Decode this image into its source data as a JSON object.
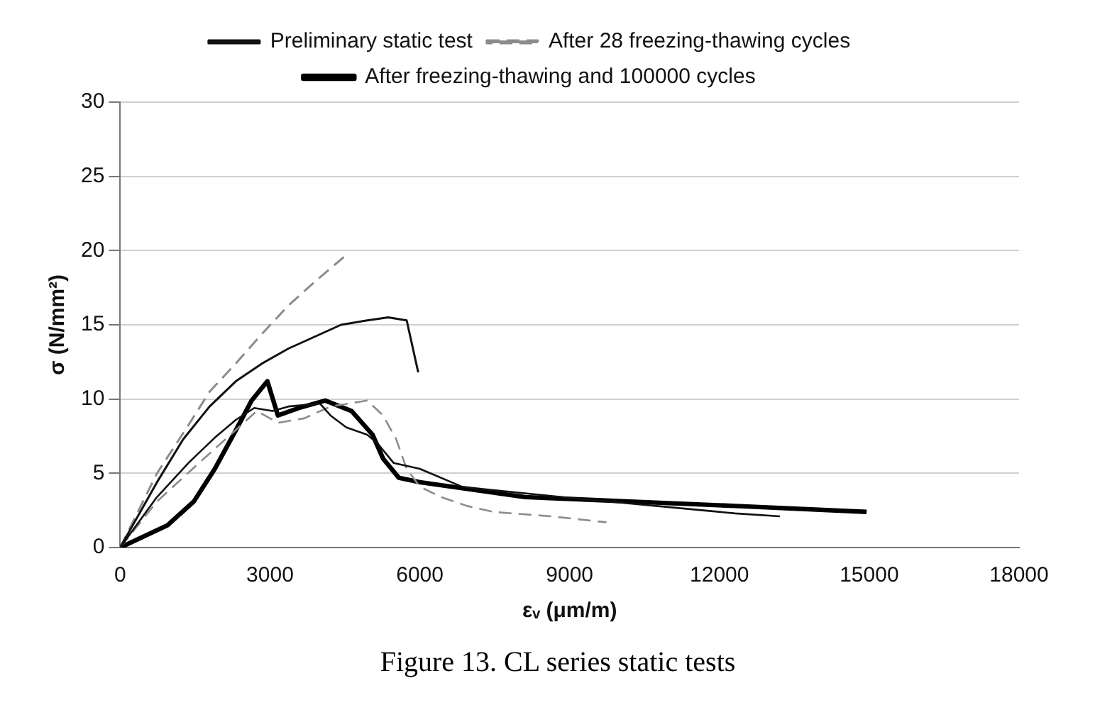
{
  "chart_data": {
    "type": "line",
    "xlabel": "εᵥ (μm/m)",
    "ylabel": "σ (N/mm²)",
    "xlim": [
      0,
      18000
    ],
    "xticks": [
      0,
      3000,
      6000,
      9000,
      12000,
      15000,
      18000
    ],
    "ylim": [
      0,
      30
    ],
    "yticks": [
      0,
      5,
      10,
      15,
      20,
      25,
      30
    ],
    "grid": "y",
    "legend": "top",
    "marker": "none",
    "annotations": [
      "Figure 13. CL series static tests"
    ],
    "series": [
      {
        "name": "Preliminary static test",
        "color": "#111111",
        "line_style": "solid",
        "x": [
          0,
          737,
          1263,
          1790,
          2316,
          2842,
          3368,
          3895,
          4421,
          4947,
          5368,
          5737,
          5968
        ],
        "values": [
          0,
          4.4,
          7.3,
          9.5,
          11.2,
          12.4,
          13.4,
          14.2,
          15.0,
          15.3,
          15.5,
          15.3,
          11.8
        ]
      },
      {
        "color": "#111111",
        "line_style": "solid",
        "x": [
          0,
          737,
          1368,
          1895,
          2316,
          2684,
          3053,
          3368,
          4000,
          4210,
          4526,
          4947,
          5158,
          5474,
          6000,
          6842,
          7368,
          9158,
          10737,
          12316,
          13210
        ],
        "values": [
          0,
          3.4,
          5.7,
          7.4,
          8.6,
          9.4,
          9.2,
          9.5,
          9.7,
          8.9,
          8.1,
          7.6,
          7.0,
          5.7,
          5.3,
          4.1,
          3.9,
          3.3,
          2.8,
          2.3,
          2.1
        ]
      },
      {
        "name": "After 28 freezing-thawing cycles",
        "color": "#8c8c8c",
        "line_style": "dashed",
        "x": [
          0,
          737,
          1368,
          1790,
          2316,
          2842,
          3368,
          3895,
          4526
        ],
        "values": [
          0,
          5.0,
          8.25,
          10.5,
          12.4,
          14.4,
          16.3,
          17.9,
          19.7
        ]
      },
      {
        "color": "#8c8c8c",
        "line_style": "dashed",
        "x": [
          0,
          737,
          1579,
          2211,
          2737,
          3158,
          3684,
          4210,
          4947,
          5263,
          5526,
          5737,
          6000,
          6421,
          6947,
          7474,
          8632,
          9737
        ],
        "values": [
          0,
          3.1,
          5.7,
          7.6,
          9.2,
          8.4,
          8.7,
          9.5,
          9.9,
          8.9,
          7.3,
          5.3,
          4.1,
          3.4,
          2.8,
          2.4,
          2.1,
          1.7
        ]
      },
      {
        "name": "After freezing-thawing and 100000 cycles",
        "color": "#000000",
        "line_style": "solid",
        "x": [
          0,
          947,
          1474,
          1895,
          2316,
          2632,
          2947,
          3158,
          3579,
          4105,
          4632,
          5053,
          5263,
          5579,
          6000,
          8105,
          10210,
          12316,
          14947
        ],
        "values": [
          0,
          1.5,
          3.1,
          5.3,
          7.9,
          9.9,
          11.2,
          8.9,
          9.4,
          9.9,
          9.2,
          7.6,
          6.0,
          4.7,
          4.4,
          3.4,
          3.1,
          2.8,
          2.4
        ]
      }
    ]
  }
}
